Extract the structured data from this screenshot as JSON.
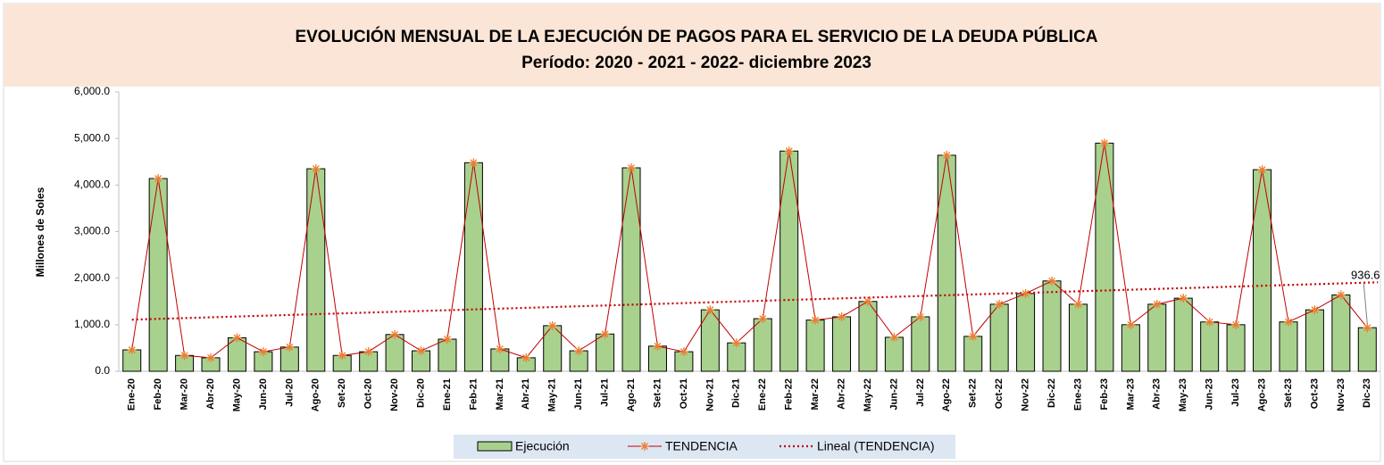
{
  "chart_data": {
    "type": "bar_line",
    "title": "EVOLUCIÓN MENSUAL DE LA EJECUCIÓN DE PAGOS PARA EL SERVICIO DE LA DEUDA PÚBLICA",
    "subtitle": "Período: 2020 - 2021 - 2022- diciembre 2023",
    "y_label": "Millones de Soles",
    "categories": [
      "Ene-20",
      "Feb-20",
      "Mar-20",
      "Abr-20",
      "May-20",
      "Jun-20",
      "Jul-20",
      "Ago-20",
      "Set-20",
      "Oct-20",
      "Nov-20",
      "Dic-20",
      "Ene-21",
      "Feb-21",
      "Mar-21",
      "Abr-21",
      "May-21",
      "Jun-21",
      "Jul-21",
      "Ago-21",
      "Set-21",
      "Oct-21",
      "Nov-21",
      "Dic-21",
      "Ene-22",
      "Feb-22",
      "Mar-22",
      "Abr-22",
      "May-22",
      "Jun-22",
      "Jul-22",
      "Ago-22",
      "Set-22",
      "Oct-22",
      "Nov-22",
      "Dic-22",
      "Ene-23",
      "Feb-23",
      "Mar-23",
      "Abr-23",
      "May-23",
      "Jun-23",
      "Jul-23",
      "Ago-23",
      "Set-23",
      "Oct-23",
      "Nov-23",
      "Dic-23"
    ],
    "series": [
      {
        "name": "Ejecución",
        "type": "bar",
        "color": "#a9d18e",
        "values": [
          460,
          4140,
          340,
          290,
          720,
          420,
          520,
          4350,
          340,
          420,
          790,
          440,
          690,
          4480,
          480,
          290,
          980,
          440,
          800,
          4370,
          540,
          420,
          1320,
          610,
          1130,
          4730,
          1100,
          1170,
          1500,
          730,
          1170,
          4640,
          750,
          1440,
          1670,
          1940,
          1440,
          4900,
          1000,
          1440,
          1570,
          1060,
          1000,
          4330,
          1060,
          1320,
          1640,
          936.6
        ]
      },
      {
        "name": "TENDENCIA",
        "type": "line",
        "color": "#c00000",
        "marker_color": "#ed7d31",
        "values": [
          460,
          4140,
          340,
          290,
          720,
          420,
          520,
          4350,
          340,
          420,
          790,
          440,
          690,
          4480,
          480,
          290,
          980,
          440,
          800,
          4370,
          540,
          420,
          1320,
          610,
          1130,
          4730,
          1100,
          1170,
          1500,
          730,
          1170,
          4640,
          750,
          1440,
          1670,
          1940,
          1440,
          4900,
          1000,
          1440,
          1570,
          1060,
          1000,
          4330,
          1060,
          1320,
          1640,
          936.6
        ]
      }
    ],
    "trendline": {
      "name": "Lineal (TENDENCIA)",
      "type": "linear",
      "color": "#c00000"
    },
    "ylim": [
      0,
      6000
    ],
    "yticks": [
      {
        "value": 0,
        "label": "0.0"
      },
      {
        "value": 1000,
        "label": "1,000.0"
      },
      {
        "value": 2000,
        "label": "2,000.0"
      },
      {
        "value": 3000,
        "label": "3,000.0"
      },
      {
        "value": 4000,
        "label": "4,000.0"
      },
      {
        "value": 5000,
        "label": "5,000.0"
      },
      {
        "value": 6000,
        "label": "6,000.0"
      }
    ],
    "grid": false,
    "legend": "bottom"
  }
}
